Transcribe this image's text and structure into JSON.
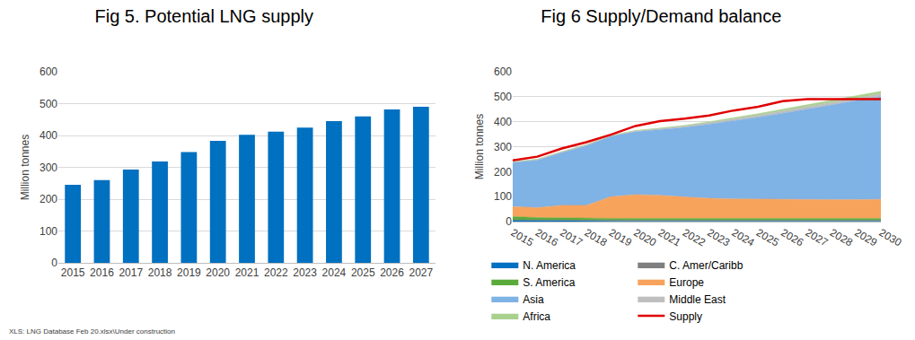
{
  "chart_data": [
    {
      "type": "bar",
      "title": "Fig 5. Potential LNG supply",
      "ylabel": "Million tonnes",
      "categories": [
        "2015",
        "2016",
        "2017",
        "2018",
        "2019",
        "2020",
        "2021",
        "2022",
        "2023",
        "2024",
        "2025",
        "2026",
        "2027"
      ],
      "values": [
        245,
        260,
        293,
        318,
        348,
        383,
        402,
        412,
        425,
        445,
        460,
        482,
        490
      ],
      "color": "#0070c0",
      "ylim": [
        0,
        600
      ],
      "yticks": [
        0,
        100,
        200,
        300,
        400,
        500,
        600
      ],
      "grid": true
    },
    {
      "type": "area",
      "title": "Fig 6 Supply/Demand balance",
      "ylabel": "Million tonnes",
      "categories": [
        "2015",
        "2016",
        "2017",
        "2018",
        "2019",
        "2020",
        "2021",
        "2022",
        "2023",
        "2024",
        "2025",
        "2026",
        "2027",
        "2028",
        "2029",
        "2030"
      ],
      "stacked": true,
      "legend": "bottom",
      "grid": true,
      "ylim": [
        0,
        600
      ],
      "yticks": [
        0,
        100,
        200,
        300,
        400,
        500,
        600
      ],
      "series": [
        {
          "name": "N. America",
          "type": "area",
          "color": "#0070c0",
          "values": [
            5,
            4,
            3,
            3,
            2,
            2,
            2,
            2,
            2,
            2,
            2,
            2,
            2,
            2,
            2,
            2
          ]
        },
        {
          "name": "C. Amer/Caribb",
          "type": "area",
          "color": "#7f7f7f",
          "values": [
            2,
            2,
            2,
            2,
            3,
            3,
            3,
            3,
            3,
            3,
            3,
            3,
            3,
            3,
            3,
            3
          ]
        },
        {
          "name": "S. America",
          "type": "area",
          "color": "#5aab3a",
          "values": [
            13,
            10,
            10,
            8,
            8,
            8,
            8,
            8,
            8,
            8,
            8,
            8,
            8,
            8,
            8,
            8
          ]
        },
        {
          "name": "Europe",
          "type": "area",
          "color": "#f7a35c",
          "values": [
            40,
            40,
            50,
            52,
            87,
            95,
            92,
            85,
            80,
            78,
            77,
            75,
            75,
            75,
            75,
            76
          ]
        },
        {
          "name": "Asia",
          "type": "area",
          "color": "#7fb2e5",
          "values": [
            176,
            190,
            211,
            239,
            241,
            252,
            263,
            279,
            297,
            312,
            328,
            346,
            362,
            379,
            397,
            411
          ]
        },
        {
          "name": "Middle East",
          "type": "area",
          "color": "#bfbfbf",
          "values": [
            3,
            3,
            3,
            3,
            3,
            3,
            4,
            5,
            6,
            7,
            8,
            9,
            10,
            10,
            11,
            12
          ]
        },
        {
          "name": "Africa",
          "type": "area",
          "color": "#a9d18e",
          "values": [
            1,
            1,
            1,
            1,
            1,
            2,
            3,
            3,
            4,
            5,
            6,
            7,
            8,
            8,
            9,
            10
          ]
        },
        {
          "name": "Supply",
          "type": "line",
          "color": "#e00000",
          "values": [
            245,
            260,
            293,
            318,
            348,
            383,
            402,
            412,
            425,
            445,
            460,
            482,
            490,
            490,
            490,
            490
          ]
        }
      ]
    }
  ],
  "footnote": "XLS: LNG Database Feb 20.xlsx\\Under construction"
}
